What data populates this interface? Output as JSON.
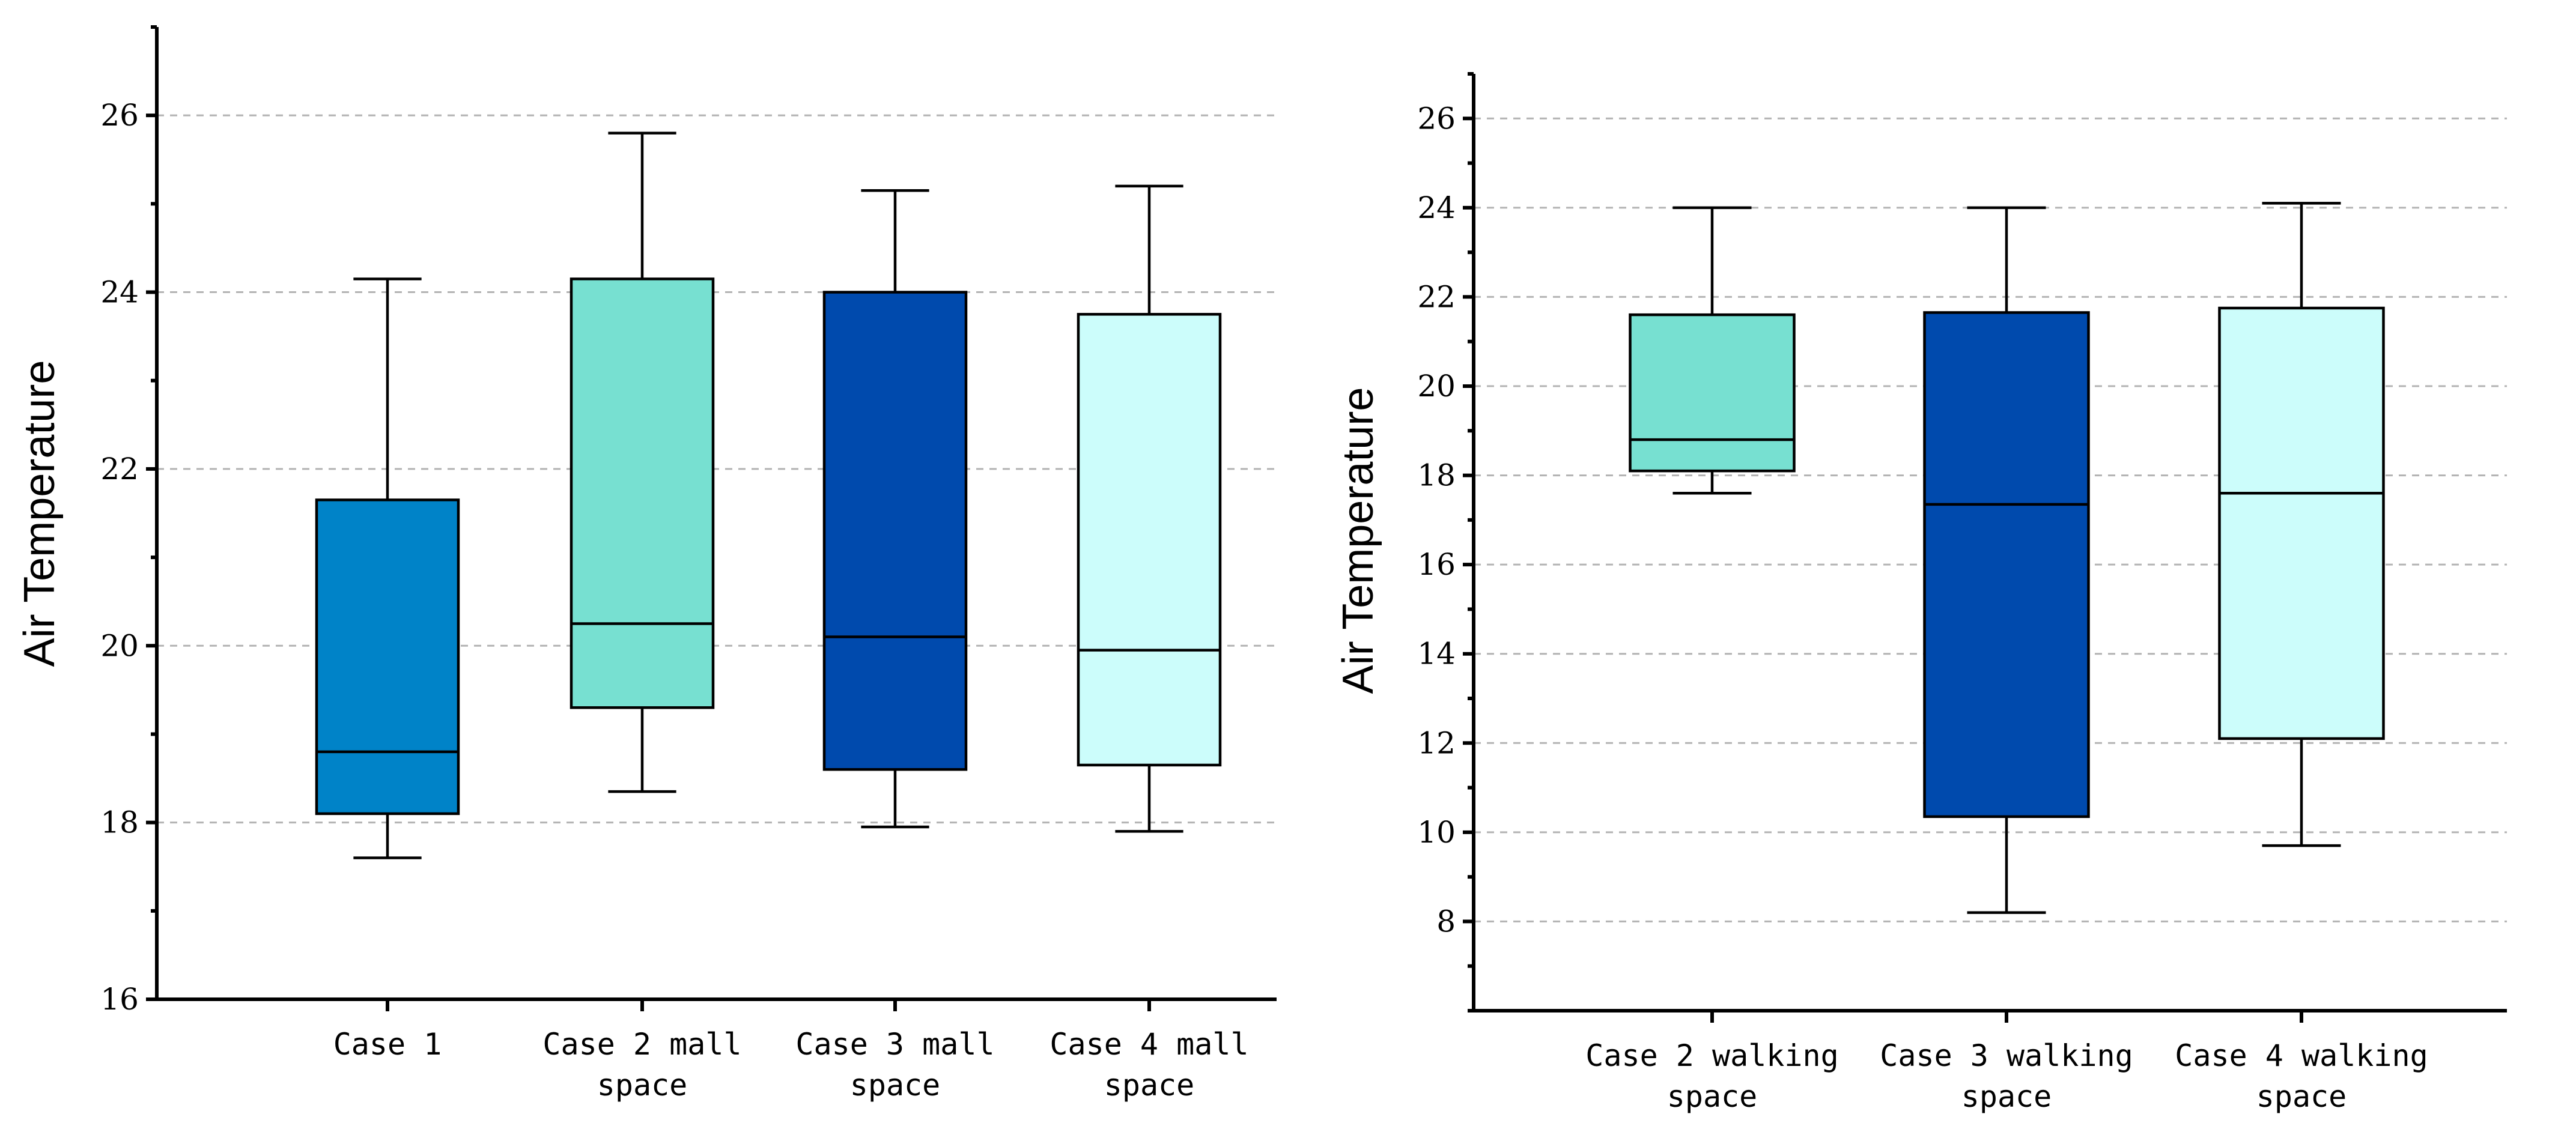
{
  "chart_data": [
    {
      "type": "box",
      "ylabel": "Air Temperature",
      "xlabel": "",
      "ylim": [
        16,
        27
      ],
      "yticks": [
        16,
        18,
        20,
        22,
        24,
        26
      ],
      "grid": true,
      "categories": [
        {
          "lines": [
            "Case 1"
          ],
          "min": 17.6,
          "q1": 18.1,
          "median": 18.8,
          "q3": 21.65,
          "max": 24.15,
          "color": "#0083c8"
        },
        {
          "lines": [
            "Case 2 mall",
            "space"
          ],
          "min": 18.35,
          "q1": 19.3,
          "median": 20.25,
          "q3": 24.15,
          "max": 25.8,
          "color": "#77e0d1"
        },
        {
          "lines": [
            "Case 3 mall",
            "space"
          ],
          "min": 17.95,
          "q1": 18.6,
          "median": 20.1,
          "q3": 24.0,
          "max": 25.15,
          "color": "#004aad"
        },
        {
          "lines": [
            "Case 4 mall",
            "space"
          ],
          "min": 17.9,
          "q1": 18.65,
          "median": 19.95,
          "q3": 23.75,
          "max": 25.2,
          "color": "#ccfdfb"
        }
      ]
    },
    {
      "type": "box",
      "ylabel": "Air Temperature",
      "xlabel": "",
      "ylim": [
        6,
        27
      ],
      "yticks": [
        8,
        10,
        12,
        14,
        16,
        18,
        20,
        22,
        24,
        26
      ],
      "grid": true,
      "categories": [
        {
          "lines": [
            "Case 2 walking",
            "space"
          ],
          "min": 17.6,
          "q1": 18.1,
          "median": 18.8,
          "q3": 21.6,
          "max": 24.0,
          "color": "#77e0d1"
        },
        {
          "lines": [
            "Case 3 walking",
            "space"
          ],
          "min": 8.2,
          "q1": 10.35,
          "median": 17.35,
          "q3": 21.65,
          "max": 24.0,
          "color": "#004aad"
        },
        {
          "lines": [
            "Case 4 walking",
            "space"
          ],
          "min": 9.7,
          "q1": 12.1,
          "median": 17.6,
          "q3": 21.75,
          "max": 24.1,
          "color": "#ccfdfb"
        }
      ]
    }
  ]
}
